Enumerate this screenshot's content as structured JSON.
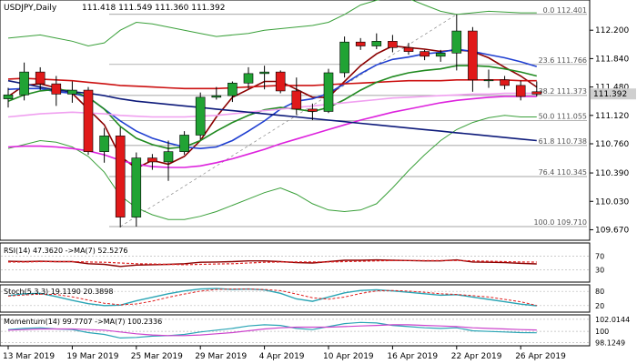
{
  "header": {
    "symbol": "USDJPY,Daily",
    "ohlc": "111.418 111.549 111.360 111.392"
  },
  "colors": {
    "bull": "#21a334",
    "bear": "#e01919",
    "ma_fast": "#8b0000",
    "ma_blue": "#1f3fd1",
    "ma_red": "#cc1010",
    "ma_green": "#208a20",
    "ma_magenta": "#dd22dd",
    "ma_pink": "#f0a0f0",
    "ma_navy": "#0d1a7a",
    "bollinger": "#3aa03a",
    "fib": "#888888",
    "price_tag_bg": "#cfcfcf",
    "price_tag_text": "#000000"
  },
  "current_price": "111.392",
  "price_axis": {
    "min": 109.56,
    "max": 112.56,
    "labels": [
      "112.200",
      "111.840",
      "111.480",
      "111.120",
      "110.760",
      "110.390",
      "110.030",
      "109.670"
    ],
    "label_values": [
      112.2,
      111.84,
      111.48,
      111.12,
      110.76,
      110.39,
      110.03,
      109.67
    ]
  },
  "fib_levels": [
    {
      "label": "0.0 112.401",
      "value": 112.401
    },
    {
      "label": "23.6 111.766",
      "value": 111.766
    },
    {
      "label": "38.2 111.373",
      "value": 111.373
    },
    {
      "label": "50.0 111.055",
      "value": 111.055
    },
    {
      "label": "61.8 110.738",
      "value": 110.738
    },
    {
      "label": "76.4 110.345",
      "value": 110.345
    },
    {
      "label": "100.0 109.710",
      "value": 109.71
    }
  ],
  "date_axis": {
    "labels": [
      "13 Mar 2019",
      "19 Mar 2019",
      "25 Mar 2019",
      "29 Mar 2019",
      "4 Apr 2019",
      "10 Apr 2019",
      "16 Apr 2019",
      "22 Apr 2019",
      "26 Apr 2019"
    ],
    "bar_index": [
      0,
      4,
      8,
      12,
      16,
      20,
      24,
      28,
      32
    ]
  },
  "chart_data": {
    "type": "candlestick",
    "ohlc": [
      [
        111.33,
        111.47,
        111.22,
        111.38
      ],
      [
        111.38,
        111.79,
        111.31,
        111.67
      ],
      [
        111.67,
        111.73,
        111.44,
        111.52
      ],
      [
        111.52,
        111.62,
        111.24,
        111.39
      ],
      [
        111.39,
        111.55,
        111.28,
        111.44
      ],
      [
        111.44,
        111.48,
        110.62,
        110.66
      ],
      [
        110.66,
        110.96,
        110.52,
        110.86
      ],
      [
        110.86,
        110.97,
        109.7,
        109.83
      ],
      [
        109.83,
        110.65,
        109.71,
        110.58
      ],
      [
        110.58,
        110.63,
        110.43,
        110.53
      ],
      [
        110.53,
        110.8,
        110.29,
        110.66
      ],
      [
        110.66,
        110.92,
        110.62,
        110.87
      ],
      [
        110.87,
        111.41,
        110.81,
        111.35
      ],
      [
        111.35,
        111.48,
        111.32,
        111.37
      ],
      [
        111.37,
        111.55,
        111.29,
        111.53
      ],
      [
        111.53,
        111.73,
        111.46,
        111.65
      ],
      [
        111.65,
        111.75,
        111.45,
        111.67
      ],
      [
        111.67,
        111.69,
        111.4,
        111.43
      ],
      [
        111.43,
        111.6,
        111.13,
        111.2
      ],
      [
        111.2,
        111.27,
        111.06,
        111.17
      ],
      [
        111.17,
        111.71,
        111.15,
        111.66
      ],
      [
        111.66,
        112.12,
        111.6,
        112.05
      ],
      [
        112.05,
        112.1,
        111.95,
        112.0
      ],
      [
        112.0,
        112.16,
        111.96,
        112.06
      ],
      [
        112.06,
        112.14,
        111.92,
        111.98
      ],
      [
        111.98,
        112.04,
        111.89,
        111.93
      ],
      [
        111.93,
        111.95,
        111.82,
        111.87
      ],
      [
        111.87,
        111.95,
        111.8,
        111.91
      ],
      [
        111.91,
        112.4,
        111.69,
        112.19
      ],
      [
        112.19,
        112.24,
        111.42,
        111.57
      ],
      [
        111.57,
        111.7,
        111.47,
        111.57
      ],
      [
        111.57,
        111.62,
        111.45,
        111.5
      ],
      [
        111.5,
        111.56,
        111.31,
        111.36
      ],
      [
        111.42,
        111.55,
        111.36,
        111.39
      ]
    ],
    "moving_averages": [
      {
        "color_key": "ma_fast",
        "values": [
          111.36,
          111.5,
          111.52,
          111.47,
          111.4,
          111.2,
          111.0,
          110.6,
          110.45,
          110.55,
          110.5,
          110.6,
          110.8,
          111.1,
          111.35,
          111.45,
          111.55,
          111.55,
          111.45,
          111.35,
          111.35,
          111.55,
          111.75,
          111.9,
          112.0,
          111.98,
          111.96,
          111.93,
          111.95,
          111.93,
          111.85,
          111.73,
          111.62,
          111.48
        ]
      },
      {
        "color_key": "ma_blue",
        "values": [
          111.45,
          111.46,
          111.46,
          111.42,
          111.4,
          111.35,
          111.2,
          111.05,
          110.92,
          110.83,
          110.77,
          110.72,
          110.7,
          110.72,
          110.8,
          110.92,
          111.05,
          111.2,
          111.3,
          111.33,
          111.4,
          111.52,
          111.65,
          111.76,
          111.83,
          111.86,
          111.9,
          111.92,
          111.96,
          111.93,
          111.89,
          111.85,
          111.8,
          111.74
        ]
      },
      {
        "color_key": "ma_red",
        "values": [
          111.58,
          111.59,
          111.58,
          111.57,
          111.56,
          111.54,
          111.52,
          111.5,
          111.49,
          111.48,
          111.47,
          111.46,
          111.46,
          111.46,
          111.47,
          111.48,
          111.49,
          111.5,
          111.5,
          111.5,
          111.51,
          111.52,
          111.53,
          111.54,
          111.55,
          111.56,
          111.56,
          111.56,
          111.57,
          111.57,
          111.57,
          111.57,
          111.56,
          111.56
        ]
      },
      {
        "color_key": "ma_green",
        "values": [
          111.3,
          111.38,
          111.43,
          111.45,
          111.43,
          111.35,
          111.2,
          110.98,
          110.83,
          110.75,
          110.7,
          110.72,
          110.8,
          110.92,
          111.03,
          111.12,
          111.19,
          111.22,
          111.2,
          111.17,
          111.22,
          111.32,
          111.44,
          111.54,
          111.61,
          111.66,
          111.69,
          111.71,
          111.75,
          111.75,
          111.74,
          111.71,
          111.67,
          111.62
        ]
      },
      {
        "color_key": "ma_magenta",
        "values": [
          110.72,
          110.73,
          110.73,
          110.72,
          110.7,
          110.67,
          110.62,
          110.55,
          110.5,
          110.47,
          110.46,
          110.46,
          110.48,
          110.52,
          110.57,
          110.63,
          110.69,
          110.76,
          110.82,
          110.88,
          110.94,
          111.0,
          111.06,
          111.11,
          111.16,
          111.2,
          111.24,
          111.28,
          111.31,
          111.33,
          111.35,
          111.36,
          111.36,
          111.36
        ]
      },
      {
        "color_key": "ma_pink",
        "values": [
          111.1,
          111.12,
          111.14,
          111.15,
          111.16,
          111.15,
          111.14,
          111.12,
          111.11,
          111.1,
          111.1,
          111.1,
          111.11,
          111.12,
          111.14,
          111.16,
          111.18,
          111.2,
          111.22,
          111.24,
          111.26,
          111.28,
          111.3,
          111.32,
          111.34,
          111.35,
          111.36,
          111.37,
          111.38,
          111.39,
          111.39,
          111.4,
          111.4,
          111.4
        ]
      },
      {
        "color_key": "ma_navy",
        "values": [
          111.56,
          111.52,
          111.48,
          111.44,
          111.42,
          111.4,
          111.37,
          111.33,
          111.3,
          111.28,
          111.26,
          111.24,
          111.22,
          111.2,
          111.18,
          111.16,
          111.14,
          111.12,
          111.1,
          111.08,
          111.06,
          111.04,
          111.02,
          111.0,
          110.98,
          110.96,
          110.94,
          110.92,
          110.9,
          110.88,
          110.86,
          110.84,
          110.82,
          110.8
        ]
      }
    ],
    "bollinger_upper": [
      112.1,
      112.12,
      112.14,
      112.1,
      112.06,
      112.0,
      112.04,
      112.2,
      112.3,
      112.28,
      112.24,
      112.2,
      112.16,
      112.12,
      112.14,
      112.16,
      112.2,
      112.22,
      112.24,
      112.26,
      112.3,
      112.4,
      112.52,
      112.58,
      112.62,
      112.6,
      112.52,
      112.44,
      112.4,
      112.42,
      112.44,
      112.43,
      112.42,
      112.42
    ],
    "bollinger_lower": [
      110.7,
      110.75,
      110.8,
      110.78,
      110.72,
      110.6,
      110.4,
      110.1,
      109.95,
      109.86,
      109.8,
      109.8,
      109.84,
      109.9,
      109.98,
      110.06,
      110.14,
      110.2,
      110.12,
      110.0,
      109.92,
      109.9,
      109.92,
      110.0,
      110.2,
      110.42,
      110.62,
      110.8,
      110.94,
      111.03,
      111.09,
      111.12,
      111.1,
      111.1
    ],
    "rsi": {
      "label": "RSI(14) 47.3620  ->MA(7) 52.5276",
      "scale_labels": [
        "70",
        "30"
      ],
      "scale_values": [
        70,
        30
      ],
      "range": [
        0,
        100
      ],
      "values": [
        55,
        54,
        55,
        54,
        54,
        48,
        46,
        40,
        44,
        45,
        46,
        48,
        52,
        53,
        54,
        56,
        56,
        54,
        51,
        50,
        54,
        58,
        58,
        59,
        58,
        57,
        56,
        56,
        59,
        53,
        52,
        51,
        49,
        47.36
      ],
      "ma": [
        53,
        53,
        54,
        54,
        54,
        53,
        52,
        50,
        48,
        47,
        46,
        45,
        46,
        47,
        48,
        50,
        52,
        53,
        53,
        53,
        53,
        54,
        55,
        56,
        57,
        57,
        57,
        57,
        57,
        56,
        55,
        54,
        53,
        52.53
      ]
    },
    "stochastic": {
      "label": "Stoch(5,3,3) 19.1190 20.3898",
      "scale_labels": [
        "80",
        "20"
      ],
      "scale_values": [
        80,
        20
      ],
      "range": [
        0,
        100
      ],
      "k": [
        62,
        70,
        72,
        58,
        42,
        28,
        20,
        22,
        40,
        55,
        70,
        82,
        90,
        92,
        88,
        90,
        86,
        72,
        48,
        38,
        56,
        74,
        84,
        87,
        82,
        76,
        70,
        64,
        66,
        56,
        46,
        36,
        26,
        19.12
      ],
      "d": [
        60,
        65,
        68,
        67,
        57,
        43,
        30,
        23,
        27,
        39,
        55,
        69,
        81,
        88,
        90,
        90,
        88,
        83,
        69,
        53,
        47,
        56,
        71,
        82,
        84,
        81,
        76,
        70,
        67,
        62,
        56,
        46,
        36,
        20.39
      ]
    },
    "momentum": {
      "label": "Momentum(14) 99.7707  ->MA(7) 100.2336",
      "scale_labels": [
        "102.0144",
        "100",
        "98.1249"
      ],
      "scale_values": [
        102.0144,
        100,
        98.1249
      ],
      "range": [
        97.9,
        102.3
      ],
      "values": [
        100.3,
        100.5,
        100.6,
        100.4,
        100.3,
        99.8,
        99.5,
        98.9,
        99.0,
        99.2,
        99.3,
        99.5,
        99.9,
        100.2,
        100.5,
        100.9,
        101.1,
        101.0,
        100.5,
        100.3,
        100.8,
        101.3,
        101.5,
        101.4,
        101.0,
        100.8,
        100.6,
        100.5,
        100.6,
        100.1,
        100.0,
        99.9,
        99.8,
        99.77
      ],
      "ma": [
        100.2,
        100.3,
        100.4,
        100.4,
        100.4,
        100.3,
        100.2,
        99.9,
        99.6,
        99.4,
        99.3,
        99.3,
        99.4,
        99.6,
        99.8,
        100.1,
        100.4,
        100.6,
        100.7,
        100.7,
        100.7,
        100.8,
        100.9,
        101.0,
        101.1,
        101.1,
        101.0,
        100.9,
        100.8,
        100.6,
        100.5,
        100.4,
        100.3,
        100.23
      ]
    }
  }
}
